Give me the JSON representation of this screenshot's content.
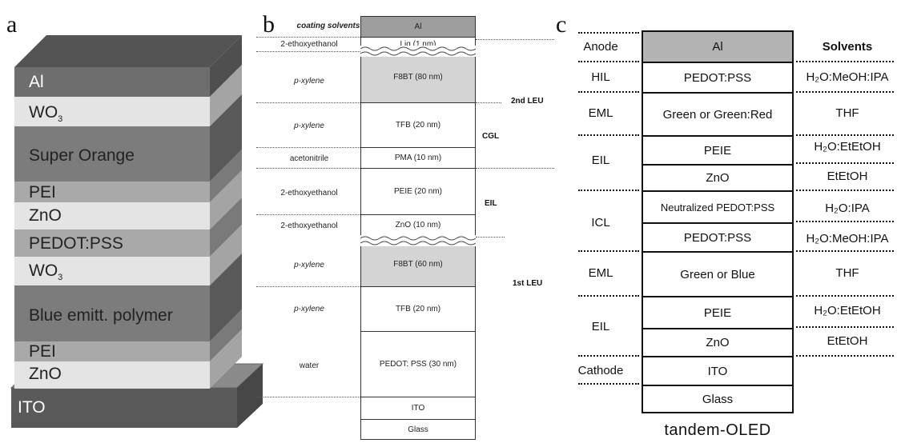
{
  "panel_a": {
    "letter": "a",
    "layers": [
      {
        "label": "Al",
        "label_sub": "",
        "color": "#6e6e6e"
      },
      {
        "label": "WO",
        "label_sub": "3",
        "color": "#e4e4e4"
      },
      {
        "label": "Super Orange",
        "label_sub": "",
        "color": "#7c7c7c"
      },
      {
        "label": "PEI",
        "label_sub": "",
        "color": "#a9a9a9"
      },
      {
        "label": "ZnO",
        "label_sub": "",
        "color": "#e4e4e4"
      },
      {
        "label": "PEDOT:PSS",
        "label_sub": "",
        "color": "#a9a9a9"
      },
      {
        "label": "WO",
        "label_sub": "3",
        "color": "#e4e4e4"
      },
      {
        "label": "Blue emitt. polymer",
        "label_sub": "",
        "color": "#7c7c7c"
      },
      {
        "label": "PEI",
        "label_sub": "",
        "color": "#a9a9a9"
      },
      {
        "label": "ZnO",
        "label_sub": "",
        "color": "#e4e4e4"
      }
    ],
    "substrate": {
      "label": "ITO",
      "color": "#5a5a5a"
    }
  },
  "panel_b": {
    "letter": "b",
    "header": "coating solvents",
    "layers": [
      {
        "label": "Al",
        "solvent": ""
      },
      {
        "label": "Liq (1 nm)",
        "solvent": "2-ethoxyethanol"
      },
      {
        "label": "F8BT (80 nm)",
        "solvent": "p-xylene"
      },
      {
        "label": "TFB (20 nm)",
        "solvent": "p-xylene"
      },
      {
        "label": "PMA (10 nm)",
        "solvent": "acetonitrile"
      },
      {
        "label": "PEIE (20 nm)",
        "solvent": "2-ethoxyethanol"
      },
      {
        "label": "ZnO (10 nm)",
        "solvent": "2-ethoxyethanol"
      },
      {
        "label": "F8BT (60 nm)",
        "solvent": "p-xylene"
      },
      {
        "label": "TFB (20 nm)",
        "solvent": "p-xylene"
      },
      {
        "label": "PEDOT: PSS (30 nm)",
        "solvent": "water"
      },
      {
        "label": "ITO",
        "solvent": ""
      },
      {
        "label": "Glass",
        "solvent": ""
      }
    ],
    "units": [
      "2nd LEU",
      "CGL",
      "EIL",
      "1st LEU"
    ]
  },
  "panel_c": {
    "letter": "c",
    "solvents_header": "Solvents",
    "rows": [
      {
        "layer": "Al",
        "solvent": ""
      },
      {
        "layer": "PEDOT:PSS",
        "solvent": "H₂O:MeOH:IPA"
      },
      {
        "layer": "Green or Green:Red",
        "solvent": "THF"
      },
      {
        "layer": "PEIE",
        "solvent": "H₂O:EtEtOH"
      },
      {
        "layer": "ZnO",
        "solvent": "EtEtOH"
      },
      {
        "layer": "Neutralized PEDOT:PSS",
        "solvent": "H₂O:IPA"
      },
      {
        "layer": "PEDOT:PSS",
        "solvent": "H₂O:MeOH:IPA"
      },
      {
        "layer": "Green or Blue",
        "solvent": "THF"
      },
      {
        "layer": "PEIE",
        "solvent": "H₂O:EtEtOH"
      },
      {
        "layer": "ZnO",
        "solvent": "EtEtOH"
      },
      {
        "layer": "ITO",
        "solvent": ""
      },
      {
        "layer": "Glass",
        "solvent": ""
      }
    ],
    "groups": [
      "Anode",
      "HIL",
      "EML",
      "EIL",
      "ICL",
      "EML",
      "EIL",
      "Cathode"
    ],
    "caption": "tandem-OLED"
  }
}
